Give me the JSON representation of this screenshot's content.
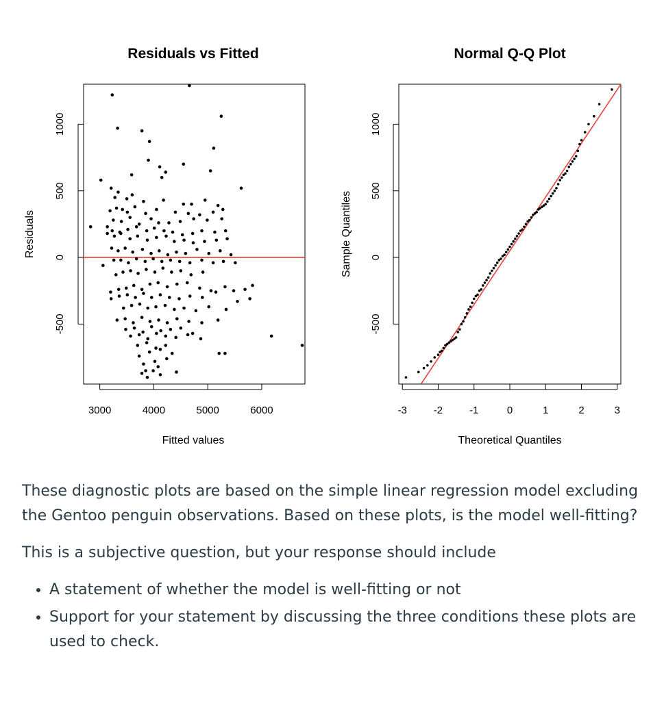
{
  "chart_data": [
    {
      "type": "scatter",
      "title": "Residuals vs Fitted",
      "xlabel": "Fitted values",
      "ylabel": "Residuals",
      "xlim": [
        2700,
        6800
      ],
      "ylim": [
        -950,
        1300
      ],
      "xticks": [
        "3000",
        "4000",
        "5000",
        "6000"
      ],
      "xtick_values": [
        3000,
        4000,
        5000,
        6000
      ],
      "yticks": [
        "-500",
        "0",
        "500",
        "1000"
      ],
      "ytick_values": [
        -500,
        0,
        500,
        1000
      ],
      "reference_line": {
        "y": 0,
        "color": "#e8433a"
      },
      "series": [
        {
          "color": "#000000",
          "x": [
            3230,
            4660,
            5250,
            3330,
            3780,
            3920,
            5110,
            3900,
            4550,
            4110,
            4220,
            5050,
            4150,
            3590,
            3020,
            3210,
            3340,
            5620,
            3280,
            3500,
            3600,
            3810,
            4180,
            4700,
            4950,
            5190,
            4550,
            3190,
            3310,
            3420,
            3510,
            3650,
            3850,
            4050,
            4400,
            4640,
            4850,
            5100,
            5280,
            3250,
            3400,
            3560,
            3730,
            3950,
            4090,
            4280,
            4490,
            4740,
            4990,
            5260,
            3140,
            3230,
            3370,
            3520,
            3680,
            3870,
            4010,
            4190,
            4350,
            4530,
            4720,
            4890,
            5130,
            5330,
            2830,
            3140,
            3270,
            3390,
            3560,
            3700,
            3880,
            4050,
            4230,
            4380,
            4560,
            4730,
            4940,
            5160,
            5360,
            3220,
            3340,
            3470,
            3610,
            3790,
            3950,
            4100,
            4260,
            4420,
            4590,
            4800,
            5020,
            5230,
            5430,
            3060,
            3260,
            3390,
            3530,
            3680,
            3840,
            3990,
            4150,
            4310,
            4480,
            4670,
            4890,
            5100,
            5290,
            5510,
            3300,
            3430,
            3570,
            3710,
            3860,
            4020,
            4170,
            4330,
            4500,
            4690,
            4910,
            3200,
            3350,
            3490,
            3630,
            3780,
            3930,
            4080,
            4250,
            4430,
            4620,
            4850,
            5060,
            5320,
            5480,
            5690,
            5830,
            3210,
            3360,
            3510,
            3660,
            3810,
            3960,
            4120,
            4290,
            4470,
            4670,
            4900,
            5150,
            5550,
            5780,
            3440,
            3590,
            3740,
            3890,
            4040,
            4210,
            4380,
            4560,
            4780,
            5020,
            5340,
            3320,
            3470,
            3620,
            3780,
            3930,
            4090,
            4250,
            4430,
            4650,
            4890,
            5190,
            3480,
            3640,
            3800,
            3960,
            4130,
            4310,
            4500,
            4720,
            3570,
            3730,
            3890,
            4050,
            4220,
            4410,
            4630,
            4870,
            5320,
            3700,
            3870,
            4040,
            4220,
            6180,
            3730,
            3920,
            4120,
            4340,
            3810,
            4020,
            4240,
            5210,
            3850,
            4080,
            3780,
            3990,
            3880,
            4120,
            4420,
            6750
          ],
          "y": [
            1220,
            1290,
            1060,
            970,
            950,
            870,
            820,
            730,
            700,
            680,
            640,
            650,
            600,
            620,
            580,
            520,
            490,
            520,
            450,
            440,
            470,
            420,
            430,
            400,
            430,
            390,
            400,
            350,
            370,
            360,
            340,
            380,
            330,
            360,
            340,
            330,
            320,
            340,
            360,
            280,
            270,
            300,
            250,
            290,
            260,
            260,
            270,
            290,
            280,
            290,
            230,
            200,
            190,
            210,
            230,
            200,
            220,
            200,
            190,
            170,
            180,
            200,
            190,
            200,
            230,
            180,
            160,
            180,
            140,
            160,
            130,
            150,
            160,
            120,
            130,
            110,
            120,
            130,
            140,
            70,
            50,
            70,
            40,
            60,
            30,
            50,
            20,
            40,
            30,
            60,
            30,
            50,
            20,
            -60,
            -20,
            -20,
            -40,
            -10,
            -30,
            -10,
            -30,
            -20,
            -30,
            -40,
            -20,
            -40,
            -30,
            -40,
            -130,
            -110,
            -100,
            -120,
            -90,
            -110,
            -80,
            -110,
            -100,
            -130,
            -110,
            -260,
            -240,
            -230,
            -210,
            -240,
            -200,
            -190,
            -220,
            -200,
            -190,
            -230,
            -250,
            -220,
            -250,
            -240,
            -210,
            -310,
            -290,
            -280,
            -300,
            -270,
            -300,
            -280,
            -300,
            -310,
            -290,
            -300,
            -260,
            -330,
            -310,
            -380,
            -360,
            -350,
            -380,
            -370,
            -360,
            -390,
            -380,
            -400,
            -370,
            -390,
            -470,
            -460,
            -490,
            -450,
            -480,
            -470,
            -490,
            -460,
            -480,
            -490,
            -470,
            -540,
            -530,
            -560,
            -520,
            -550,
            -540,
            -530,
            -570,
            -590,
            -580,
            -610,
            -570,
            -590,
            -600,
            -580,
            -610,
            -720,
            -660,
            -640,
            -680,
            -660,
            -590,
            -740,
            -710,
            -690,
            -720,
            -800,
            -780,
            -760,
            -720,
            -850,
            -820,
            -870,
            -850,
            -900,
            -880,
            -860,
            -660
          ]
        }
      ]
    },
    {
      "type": "scatter",
      "title": "Normal Q-Q Plot",
      "xlabel": "Theoretical Quantiles",
      "ylabel": "Sample Quantiles",
      "xlim": [
        -3.1,
        3.1
      ],
      "ylim": [
        -950,
        1300
      ],
      "xticks": [
        "-3",
        "-2",
        "-1",
        "0",
        "1",
        "2",
        "3"
      ],
      "xtick_values": [
        -3,
        -2,
        -1,
        0,
        1,
        2,
        3
      ],
      "yticks": [
        "-500",
        "0",
        "500",
        "1000"
      ],
      "ytick_values": [
        -500,
        0,
        500,
        1000
      ],
      "reference_line": {
        "x": [
          -3.1,
          3.1
        ],
        "y": [
          -1200,
          1300
        ],
        "color": "#e8433a"
      },
      "series": [
        {
          "color": "#000000",
          "x": [
            -2.9,
            -2.55,
            -2.4,
            -2.3,
            -2.2,
            -2.1,
            -2.0,
            -1.95,
            -1.9,
            -1.85,
            -1.8,
            -1.75,
            -1.7,
            -1.65,
            -1.6,
            -1.55,
            -1.5,
            -1.45,
            -1.4,
            -1.35,
            -1.3,
            -1.25,
            -1.2,
            -1.15,
            -1.1,
            -1.05,
            -1.0,
            -0.95,
            -0.9,
            -0.85,
            -0.8,
            -0.75,
            -0.7,
            -0.65,
            -0.6,
            -0.55,
            -0.5,
            -0.45,
            -0.4,
            -0.35,
            -0.3,
            -0.25,
            -0.2,
            -0.15,
            -0.1,
            -0.05,
            0.0,
            0.05,
            0.1,
            0.15,
            0.2,
            0.25,
            0.3,
            0.35,
            0.4,
            0.45,
            0.5,
            0.55,
            0.6,
            0.65,
            0.7,
            0.75,
            0.8,
            0.85,
            0.9,
            0.95,
            1.0,
            1.05,
            1.1,
            1.15,
            1.2,
            1.25,
            1.3,
            1.35,
            1.4,
            1.45,
            1.5,
            1.55,
            1.6,
            1.65,
            1.7,
            1.75,
            1.8,
            1.85,
            1.9,
            1.95,
            2.0,
            2.1,
            2.2,
            2.35,
            2.5,
            2.85
          ],
          "y": [
            -900,
            -860,
            -830,
            -810,
            -780,
            -750,
            -730,
            -710,
            -700,
            -680,
            -660,
            -650,
            -640,
            -630,
            -620,
            -610,
            -600,
            -560,
            -540,
            -500,
            -480,
            -450,
            -420,
            -390,
            -370,
            -340,
            -310,
            -290,
            -280,
            -250,
            -240,
            -210,
            -190,
            -170,
            -150,
            -120,
            -100,
            -80,
            -60,
            -40,
            -20,
            -10,
            10,
            20,
            40,
            60,
            80,
            100,
            120,
            140,
            160,
            180,
            200,
            210,
            230,
            250,
            270,
            280,
            300,
            320,
            330,
            340,
            360,
            370,
            380,
            390,
            400,
            420,
            440,
            460,
            480,
            500,
            520,
            550,
            580,
            600,
            620,
            630,
            650,
            680,
            700,
            720,
            740,
            760,
            800,
            850,
            880,
            940,
            1000,
            1060,
            1150,
            1260
          ]
        }
      ]
    }
  ],
  "question": {
    "paragraph1": "These diagnostic plots are based on the simple linear regression model excluding the Gentoo penguin observations. Based on these plots, is the model well-fitting?",
    "paragraph2": "This is a subjective question, but your response should include",
    "bullets": [
      "A statement of whether the model is well-fitting or not",
      "Support for your statement by discussing the three conditions these plots are used to check."
    ]
  }
}
